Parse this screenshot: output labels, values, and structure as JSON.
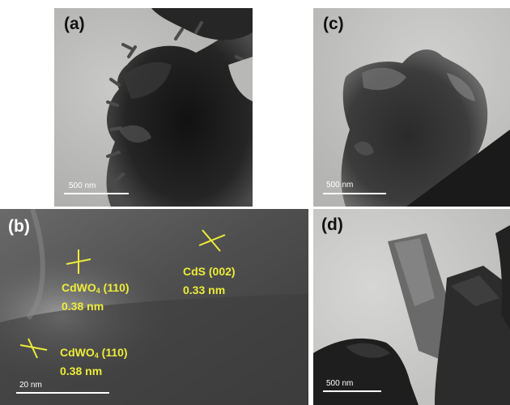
{
  "panels": {
    "a": {
      "label": "(a)",
      "scale": "500 nm"
    },
    "b": {
      "label": "(b)",
      "scale": "20 nm",
      "annotations": [
        {
          "formula": "CdWO",
          "subscript": "4",
          "plane": " (110)",
          "spacing": "0.38 nm"
        },
        {
          "formula": "CdS",
          "subscript": "",
          "plane": " (002)",
          "spacing": "0.33 nm"
        },
        {
          "formula": "CdWO",
          "subscript": "4",
          "plane": " (110)",
          "spacing": "0.38 nm"
        }
      ]
    },
    "c": {
      "label": "(c)",
      "scale": "500 nm"
    },
    "d": {
      "label": "(d)",
      "scale": "500 nm"
    }
  },
  "colors": {
    "annotation": "#ecec3a",
    "background_tem": "#c8c8c6",
    "particle": "#1c1c1c"
  }
}
